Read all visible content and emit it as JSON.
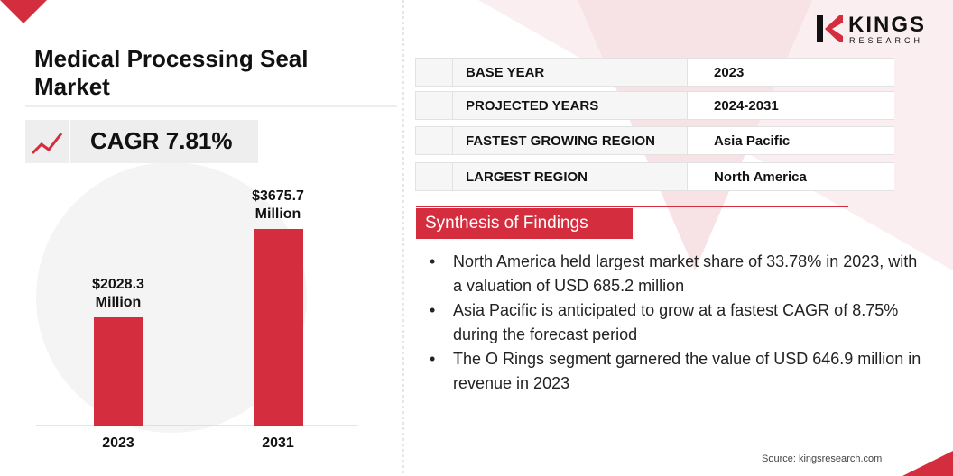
{
  "logo": {
    "name": "KINGS",
    "tagline": "RESEARCH"
  },
  "header": {
    "title": "Medical Processing Seal Market",
    "cagr": "CAGR 7.81%"
  },
  "chart_data": {
    "type": "bar",
    "categories": [
      "2023",
      "2031"
    ],
    "values": [
      2028.3,
      3675.7
    ],
    "value_labels": [
      "$2028.3 Million",
      "$3675.7 Million"
    ],
    "color": "#d42d3e"
  },
  "info": {
    "rows": [
      [
        "BASE YEAR",
        "2023"
      ],
      [
        "PROJECTED YEARS",
        "2024-2031"
      ],
      [
        "FASTEST GROWING REGION",
        "Asia Pacific"
      ],
      [
        "LARGEST REGION",
        "North America"
      ]
    ]
  },
  "findings": {
    "title": "Synthesis of Findings",
    "items": [
      "North America held largest market share of 33.78% in 2023, with a valuation of USD 685.2 million",
      "Asia Pacific is anticipated to grow at a fastest CAGR of 8.75% during the forecast period",
      "The O Rings segment garnered the value of USD 646.9 million in revenue in 2023"
    ]
  },
  "source": "Source: kingsresearch.com"
}
